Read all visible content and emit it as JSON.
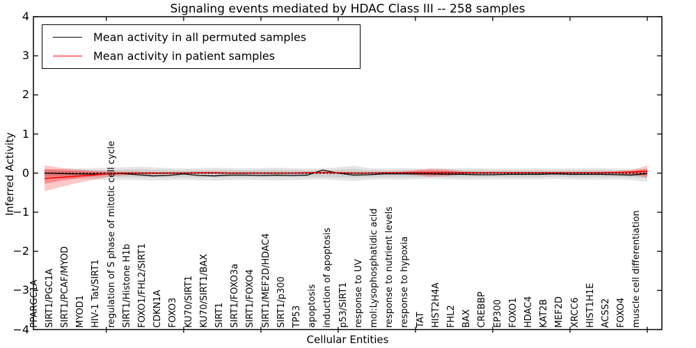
{
  "title": "Signaling events mediated by HDAC Class III -- 258 samples",
  "legend": {
    "entries": [
      {
        "label": "Mean activity in all permuted samples",
        "color": "#000000"
      },
      {
        "label": "Mean activity in patient samples",
        "color": "#ff0000"
      }
    ]
  },
  "chart_data": {
    "type": "line",
    "title": "Signaling events mediated by HDAC Class III -- 258 samples",
    "xlabel": "Cellular Entities",
    "ylabel": "Inferred Activity",
    "ylim": [
      -4,
      4
    ],
    "y_ticks": [
      4,
      3,
      2,
      1,
      0,
      -1,
      -2,
      -3,
      -4
    ],
    "x_major_tick_indices": [
      4,
      9,
      14,
      19,
      24,
      29,
      34,
      39
    ],
    "grid": false,
    "legend_position": "upper left",
    "categories": [
      "PPARGC1A",
      "SIRT1/PGC1A",
      "SIRT1/PCAF/MYOD",
      "MYOD1",
      "HIV-1 Tat/SIRT1",
      "regulation of S phase of mitotic cell cycle",
      "SIRT1/Histone H1b",
      "FOXO1/FHL2/SIRT1",
      "CDKN1A",
      "FOXO3",
      "KU70/SIRT1",
      "KU70/SIRT1/BAX",
      "SIRT1",
      "SIRT1/FOXO3a",
      "SIRT1/FOXO4",
      "SIRT1/MEF2D/HDAC4",
      "SIRT1/p300",
      "TP53",
      "apoptosis",
      "induction of apoptosis",
      "p53/SIRT1",
      "response to UV",
      "mol:Lysophosphatidic acid",
      "response to nutrient levels",
      "response to hypoxia",
      "TAT",
      "HIST2H4A",
      "FHL2",
      "BAX",
      "CREBBP",
      "EP300",
      "FOXO1",
      "HDAC4",
      "KAT2B",
      "MEF2D",
      "XRCC6",
      "HIST1H1E",
      "ACSS2",
      "FOXO4",
      "muscle cell differentiation"
    ],
    "series": [
      {
        "name": "Mean activity in all permuted samples",
        "color": "#000000",
        "mean": [
          0.0,
          -0.01,
          -0.02,
          -0.02,
          -0.02,
          -0.01,
          -0.04,
          -0.07,
          -0.06,
          -0.02,
          -0.06,
          -0.07,
          -0.05,
          -0.05,
          -0.06,
          -0.05,
          -0.06,
          -0.05,
          0.08,
          0.0,
          -0.05,
          -0.04,
          -0.02,
          -0.02,
          -0.02,
          -0.02,
          -0.03,
          -0.03,
          -0.04,
          -0.04,
          -0.03,
          -0.03,
          -0.03,
          -0.02,
          -0.03,
          -0.03,
          -0.03,
          -0.04,
          -0.05,
          -0.01
        ],
        "band_inner_upper": [
          0.06,
          0.07,
          0.07,
          0.08,
          0.08,
          0.09,
          0.1,
          0.09,
          0.08,
          0.07,
          0.08,
          0.08,
          0.08,
          0.07,
          0.08,
          0.08,
          0.08,
          0.07,
          0.08,
          0.09,
          0.11,
          0.08,
          0.07,
          0.08,
          0.07,
          0.07,
          0.07,
          0.08,
          0.08,
          0.07,
          0.07,
          0.07,
          0.08,
          0.07,
          0.07,
          0.08,
          0.08,
          0.07,
          0.07,
          0.06
        ],
        "band_inner_lower": [
          -0.07,
          -0.08,
          -0.09,
          -0.1,
          -0.1,
          -0.1,
          -0.11,
          -0.11,
          -0.11,
          -0.1,
          -0.11,
          -0.11,
          -0.11,
          -0.1,
          -0.11,
          -0.11,
          -0.11,
          -0.1,
          -0.1,
          -0.11,
          -0.12,
          -0.1,
          -0.1,
          -0.1,
          -0.1,
          -0.09,
          -0.1,
          -0.1,
          -0.1,
          -0.1,
          -0.1,
          -0.1,
          -0.1,
          -0.09,
          -0.1,
          -0.1,
          -0.1,
          -0.1,
          -0.11,
          -0.13
        ],
        "band_outer_upper": [
          0.1,
          0.11,
          0.12,
          0.13,
          0.14,
          0.15,
          0.16,
          0.15,
          0.13,
          0.12,
          0.13,
          0.14,
          0.13,
          0.12,
          0.13,
          0.14,
          0.13,
          0.12,
          0.13,
          0.15,
          0.19,
          0.13,
          0.12,
          0.13,
          0.12,
          0.11,
          0.12,
          0.13,
          0.13,
          0.12,
          0.12,
          0.12,
          0.13,
          0.12,
          0.12,
          0.13,
          0.13,
          0.12,
          0.11,
          0.1
        ],
        "band_outer_lower": [
          -0.12,
          -0.13,
          -0.15,
          -0.16,
          -0.17,
          -0.17,
          -0.18,
          -0.19,
          -0.18,
          -0.17,
          -0.18,
          -0.19,
          -0.18,
          -0.17,
          -0.18,
          -0.19,
          -0.18,
          -0.17,
          -0.16,
          -0.18,
          -0.2,
          -0.17,
          -0.16,
          -0.17,
          -0.16,
          -0.15,
          -0.16,
          -0.17,
          -0.17,
          -0.16,
          -0.16,
          -0.16,
          -0.16,
          -0.15,
          -0.16,
          -0.17,
          -0.17,
          -0.16,
          -0.18,
          -0.22
        ]
      },
      {
        "name": "Mean activity in patient samples",
        "color": "#ff0000",
        "mean": [
          -0.14,
          -0.11,
          -0.08,
          -0.05,
          -0.02,
          0.0,
          0.0,
          0.0,
          0.0,
          0.0,
          0.01,
          0.01,
          0.0,
          0.0,
          0.0,
          0.0,
          0.0,
          0.01,
          0.02,
          0.01,
          0.0,
          0.0,
          0.01,
          0.01,
          0.01,
          0.01,
          0.01,
          0.01,
          0.01,
          0.01,
          0.01,
          0.01,
          0.01,
          0.01,
          0.01,
          0.01,
          0.01,
          0.02,
          0.03,
          0.05
        ],
        "band_inner_upper": [
          0.11,
          0.08,
          0.06,
          0.04,
          0.03,
          0.02,
          0.02,
          0.02,
          0.02,
          0.02,
          0.02,
          0.02,
          0.02,
          0.02,
          0.02,
          0.02,
          0.02,
          0.02,
          0.03,
          0.02,
          0.02,
          0.02,
          0.02,
          0.02,
          0.05,
          0.07,
          0.06,
          0.03,
          0.02,
          0.02,
          0.02,
          0.02,
          0.02,
          0.02,
          0.02,
          0.02,
          0.02,
          0.03,
          0.05,
          0.11
        ],
        "band_inner_lower": [
          -0.27,
          -0.2,
          -0.14,
          -0.09,
          -0.05,
          -0.03,
          -0.02,
          -0.02,
          -0.02,
          -0.01,
          -0.01,
          -0.01,
          -0.01,
          -0.01,
          -0.01,
          -0.01,
          -0.01,
          -0.01,
          -0.01,
          -0.01,
          -0.01,
          -0.01,
          -0.01,
          -0.01,
          -0.03,
          -0.06,
          -0.04,
          -0.02,
          -0.01,
          -0.01,
          -0.01,
          -0.01,
          -0.01,
          -0.01,
          -0.01,
          -0.01,
          -0.01,
          -0.02,
          -0.03,
          -0.07
        ],
        "band_outer_upper": [
          0.2,
          0.14,
          0.1,
          0.07,
          0.05,
          0.04,
          0.04,
          0.03,
          0.03,
          0.03,
          0.03,
          0.03,
          0.03,
          0.03,
          0.03,
          0.03,
          0.03,
          0.03,
          0.04,
          0.03,
          0.03,
          0.03,
          0.03,
          0.04,
          0.08,
          0.12,
          0.1,
          0.05,
          0.03,
          0.03,
          0.03,
          0.03,
          0.03,
          0.03,
          0.03,
          0.03,
          0.04,
          0.05,
          0.08,
          0.19
        ],
        "band_outer_lower": [
          -0.46,
          -0.36,
          -0.26,
          -0.18,
          -0.11,
          -0.06,
          -0.04,
          -0.03,
          -0.03,
          -0.03,
          -0.02,
          -0.02,
          -0.02,
          -0.02,
          -0.02,
          -0.02,
          -0.02,
          -0.02,
          -0.02,
          -0.02,
          -0.02,
          -0.02,
          -0.02,
          -0.02,
          -0.06,
          -0.1,
          -0.08,
          -0.03,
          -0.02,
          -0.02,
          -0.01,
          -0.01,
          -0.01,
          -0.01,
          -0.01,
          -0.01,
          -0.02,
          -0.02,
          -0.04,
          -0.12
        ]
      }
    ],
    "reference_line": {
      "value": 0,
      "style": "dotted",
      "color": "#000000"
    }
  }
}
